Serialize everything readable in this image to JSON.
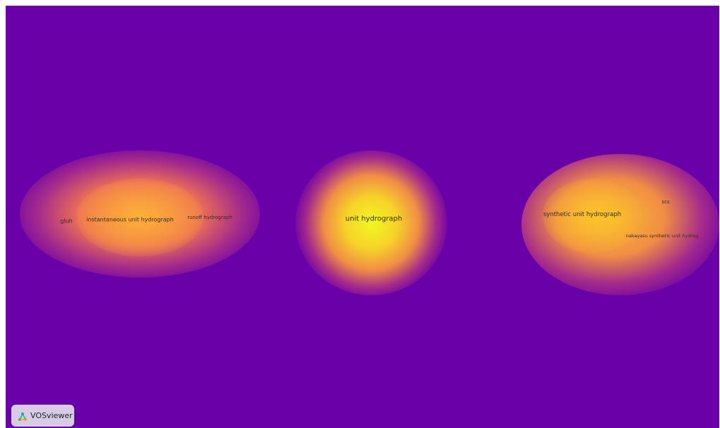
{
  "map": {
    "labels": {
      "gluh": "gluh",
      "instantaneous": "instantaneous unit hydrograph",
      "runoff": "runoff hydrograph",
      "unit": "unit hydrograph",
      "synthetic": "synthetic unit hydrograph",
      "scs": "scs",
      "nakayasu": "nakayasu synthetic unit hydrog"
    }
  },
  "footer": {
    "logo_label": "VOSviewer"
  },
  "colors": {
    "background": "#6a00a8",
    "peak": "#f0f921",
    "mid": "#f89540",
    "low": "#cc4778"
  },
  "icons": {
    "logo": "vosviewer-logo-icon"
  }
}
